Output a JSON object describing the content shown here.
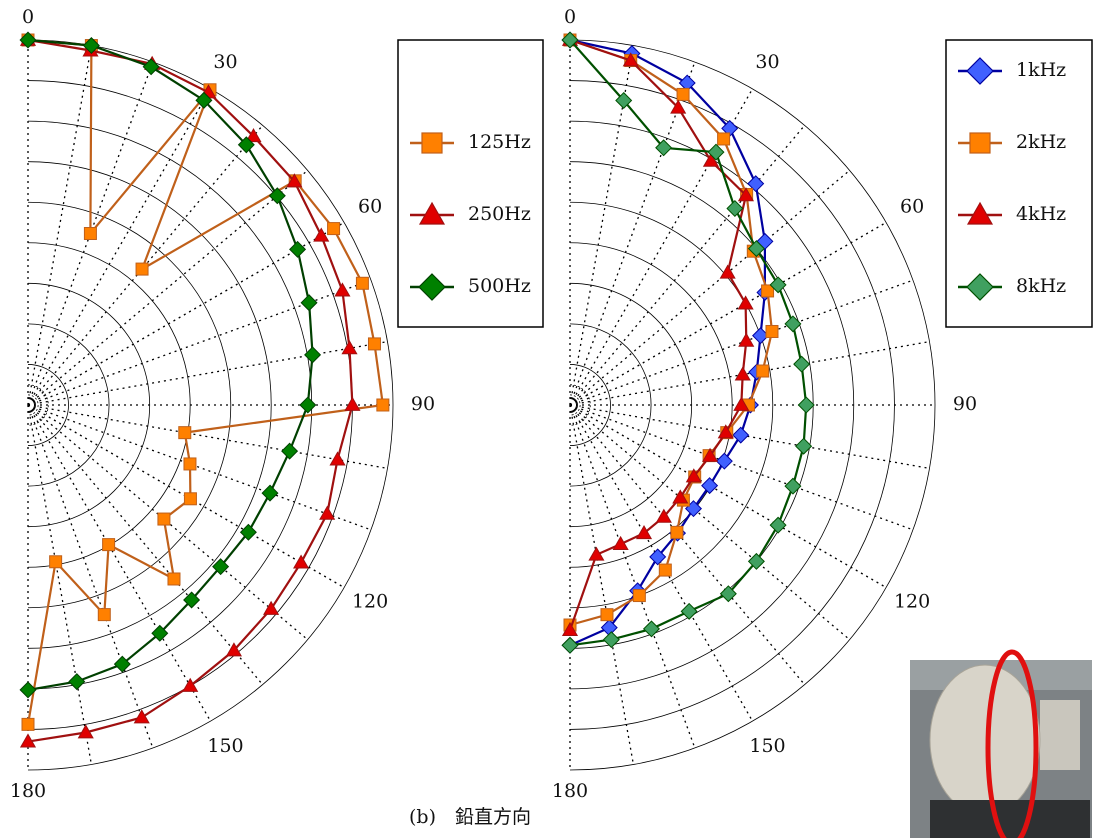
{
  "chart_data": [
    {
      "type": "polar",
      "theta": [
        0,
        10,
        20,
        30,
        40,
        50,
        60,
        70,
        80,
        90,
        100,
        110,
        120,
        130,
        140,
        150,
        160,
        170,
        180
      ],
      "thetaticks": [
        0,
        30,
        60,
        90,
        120,
        150,
        180
      ],
      "rlim": [
        0,
        36
      ],
      "rticks": [
        1,
        2,
        4,
        8,
        12,
        16,
        20,
        24,
        28,
        32,
        36
      ],
      "series": [
        {
          "name": "125Hz",
          "color": "#c0601a",
          "marker_color": "#ff8000",
          "marker": "square",
          "values": [
            36,
            36,
            18,
            35.9,
            17.5,
            34.4,
            34.8,
            35.1,
            34.7,
            35,
            15.7,
            17,
            18.5,
            17.5,
            22.4,
            15.9,
            22,
            15.7,
            31.5
          ]
        },
        {
          "name": "250Hz",
          "color": "#a01010",
          "marker_color": "#e00000",
          "marker": "triangle",
          "values": [
            36,
            35.5,
            35.8,
            35.6,
            34.6,
            34.3,
            33.4,
            33,
            32.2,
            32,
            31,
            31.4,
            31.1,
            31.3,
            31.6,
            32,
            32.8,
            32.8,
            33.2
          ]
        },
        {
          "name": "500Hz",
          "color": "#004000",
          "marker_color": "#008000",
          "marker": "diamond",
          "values": [
            36,
            36,
            35.5,
            34.7,
            33.5,
            32.1,
            30.7,
            29.5,
            28.5,
            27.6,
            26.2,
            25.4,
            25.1,
            24.8,
            25.1,
            26,
            27.2,
            27.7,
            28.1
          ]
        }
      ]
    },
    {
      "type": "polar",
      "theta": [
        0,
        10,
        20,
        30,
        40,
        50,
        60,
        70,
        80,
        90,
        100,
        110,
        120,
        130,
        140,
        150,
        160,
        170,
        180
      ],
      "thetaticks": [
        0,
        30,
        60,
        90,
        120,
        150,
        180
      ],
      "rlim": [
        0,
        36
      ],
      "rticks": [
        1,
        2,
        4,
        8,
        12,
        16,
        20,
        24,
        28,
        32,
        36
      ],
      "series": [
        {
          "name": "1kHz",
          "color": "#0000a0",
          "marker_color": "#4060ff",
          "marker": "diamond",
          "values": [
            36,
            35.2,
            33.8,
            31.5,
            28.5,
            25.1,
            22.2,
            20,
            18.7,
            17.8,
            17.1,
            16.2,
            15.9,
            15.9,
            16.5,
            17.3,
            19.5,
            22.3,
            23.7
          ]
        },
        {
          "name": "2kHz",
          "color": "#c0601a",
          "marker_color": "#ff8000",
          "marker": "square",
          "values": [
            36,
            34.5,
            32.6,
            30.3,
            27.1,
            23.6,
            22.5,
            21.2,
            19.3,
            17.6,
            15.7,
            14.6,
            14.2,
            14.6,
            16.4,
            18.8,
            20,
            21,
            21.7
          ]
        },
        {
          "name": "4kHz",
          "color": "#a01010",
          "marker_color": "#e00000",
          "marker": "triangle",
          "values": [
            36,
            34.5,
            31.2,
            27.8,
            27,
            20.3,
            20,
            18.5,
            17.3,
            16.9,
            15.6,
            14.7,
            14.1,
            14.2,
            14.4,
            14.6,
            14.6,
            15,
            22.2
          ]
        },
        {
          "name": "8kHz",
          "color": "#005000",
          "marker_color": "#40a060",
          "marker": "diamond",
          "values": [
            36,
            30.5,
            27,
            28.8,
            25.3,
            24,
            23.7,
            23.4,
            23.2,
            23.3,
            23.4,
            23.4,
            23.7,
            24,
            24.3,
            23.5,
            23.5,
            23.5,
            23.7
          ]
        }
      ]
    }
  ],
  "caption": "(b)　鉛直方向"
}
